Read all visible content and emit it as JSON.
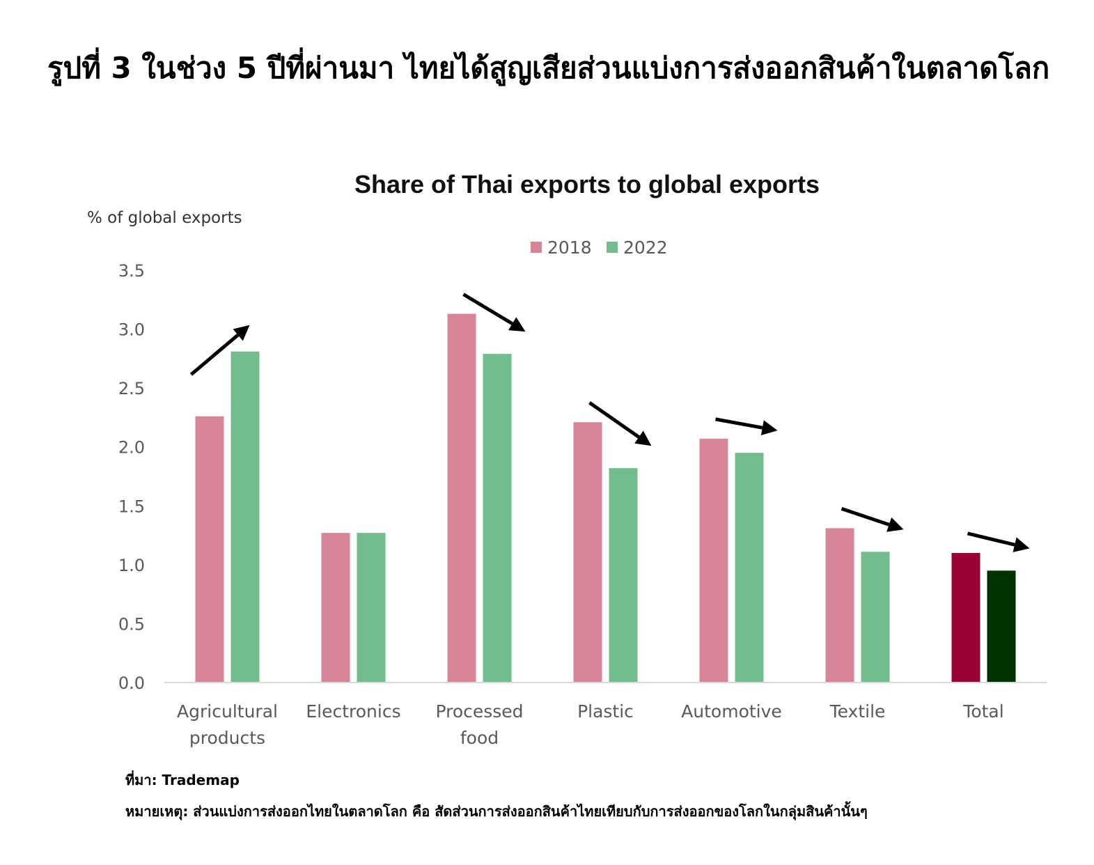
{
  "figure_title": "รูปที่ 3 ในช่วง 5 ปีที่ผ่านมา ไทยได้สูญเสียส่วนแบ่งการส่งออกสินค้าในตลาดโลก",
  "source": "ที่มา: Trademap",
  "note": "หมายเหตุ: ส่วนแบ่งการส่งออกไทยในตลาดโลก คือ สัดส่วนการส่งออกสินค้าไทยเทียบกับการส่งออกของโลกในกลุ่มสินค้านั้นๆ",
  "chart_data": {
    "type": "bar",
    "title": "Share of Thai exports to global exports",
    "ylabel": "% of global exports",
    "xlabel": "",
    "ylim": [
      0,
      3.5
    ],
    "yticks": [
      "0.0",
      "0.5",
      "1.0",
      "1.5",
      "2.0",
      "2.5",
      "3.0",
      "3.5"
    ],
    "grid": false,
    "legend_position": "top-center",
    "categories": [
      [
        "Agricultural",
        "products"
      ],
      [
        "Electronics"
      ],
      [
        "Processed",
        "food"
      ],
      [
        "Plastic"
      ],
      [
        "Automotive"
      ],
      [
        "Textile"
      ],
      [
        "Total"
      ]
    ],
    "series": [
      {
        "name": "2018",
        "color": "#d78496",
        "highlight_color": "#990033",
        "values": [
          2.26,
          1.27,
          3.13,
          2.21,
          2.07,
          1.31,
          1.1
        ]
      },
      {
        "name": "2022",
        "color": "#72bc8e",
        "highlight_color": "#013300",
        "values": [
          2.81,
          1.27,
          2.79,
          1.82,
          1.95,
          1.11,
          0.95
        ]
      }
    ],
    "highlight_category": "Total",
    "trend_arrows": [
      "up",
      "none",
      "down",
      "down",
      "down",
      "down",
      "down"
    ]
  }
}
